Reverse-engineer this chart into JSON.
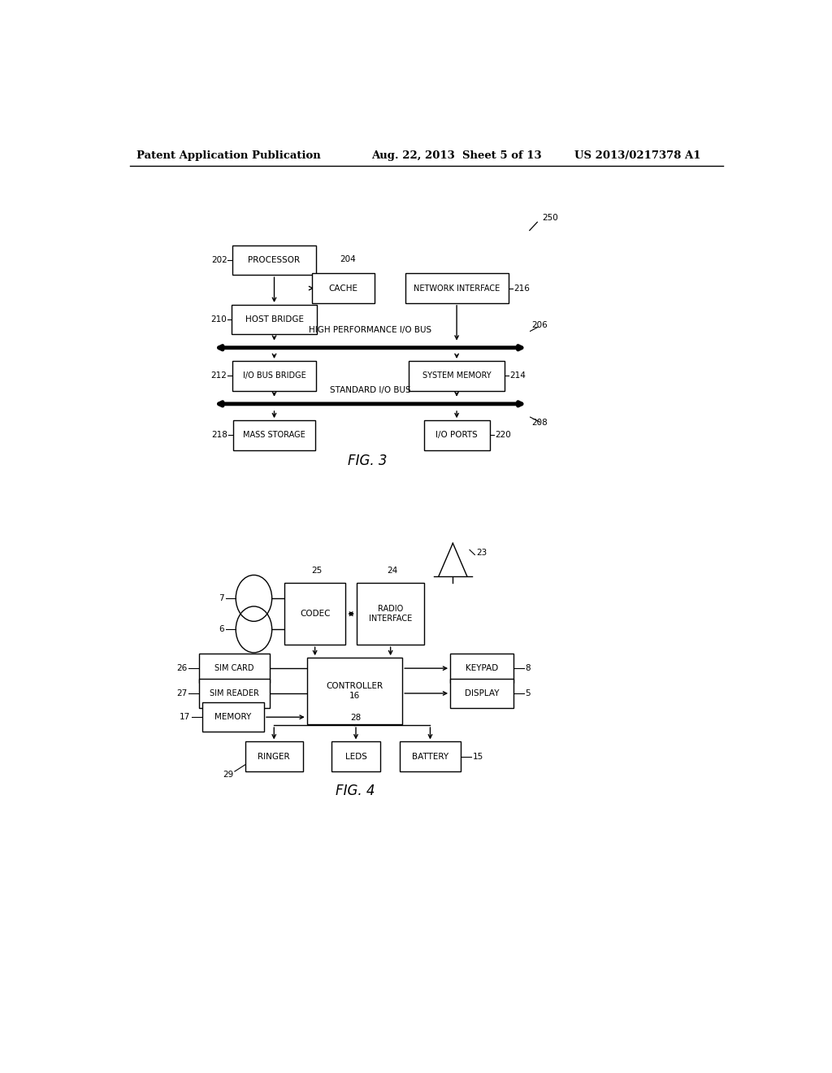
{
  "bg_color": "#ffffff",
  "header_left": "Patent Application Publication",
  "header_mid": "Aug. 22, 2013  Sheet 5 of 13",
  "header_right": "US 2013/0217378 A1"
}
